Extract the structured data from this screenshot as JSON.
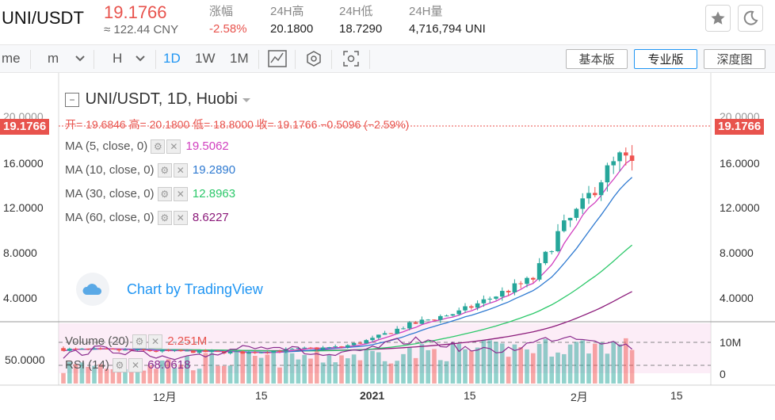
{
  "header": {
    "pair": "UNI/USDT",
    "last_price": "19.1766",
    "cny": "≈ 122.44 CNY",
    "stats": [
      {
        "key": "涨幅",
        "value": "-2.58%",
        "neg": true
      },
      {
        "key": "24H高",
        "value": "20.1800"
      },
      {
        "key": "24H低",
        "value": "18.7290"
      },
      {
        "key": "24H量",
        "value": "4,716,794 UNI"
      }
    ]
  },
  "toolbar": {
    "time_label": "me",
    "minute_label": "m",
    "hour_label": "H",
    "intervals": [
      "1D",
      "1W",
      "1M"
    ],
    "versions": [
      "基本版",
      "专业版",
      "深度图"
    ]
  },
  "legend": {
    "title": "UNI/USDT, 1D, Huobi",
    "ohlc": "开= 19.6846  高= 20.1800  低= 18.8000  收= 19.1766  −0.5096 (−2.59%)",
    "ma": [
      {
        "label": "MA (5, close, 0)",
        "value": "19.5062",
        "color": "#d13fbf"
      },
      {
        "label": "MA (10, close, 0)",
        "value": "19.2890",
        "color": "#2f7ad1"
      },
      {
        "label": "MA (30, close, 0)",
        "value": "12.8963",
        "color": "#2cc86a"
      },
      {
        "label": "MA (60, close, 0)",
        "value": "8.6227",
        "color": "#8b1a7a"
      }
    ],
    "volume": {
      "label": "Volume (20)",
      "value": "2.251M"
    },
    "rsi": {
      "label": "RSI (14)",
      "value": "68.0618"
    }
  },
  "price_axis": [
    "20.0000",
    "16.0000",
    "12.0000",
    "8.0000",
    "4.0000"
  ],
  "price_tag": "19.1766",
  "lower_axis_right": [
    "10M",
    "0"
  ],
  "lower_axis_left": [
    "50.0000"
  ],
  "x_labels": [
    "12月",
    "15",
    "2021",
    "15",
    "2月",
    "15"
  ],
  "watermark": "Chart by TradingView",
  "colors": {
    "up": "#26a69a",
    "down": "#ef5350",
    "accent": "#2196f3"
  }
}
